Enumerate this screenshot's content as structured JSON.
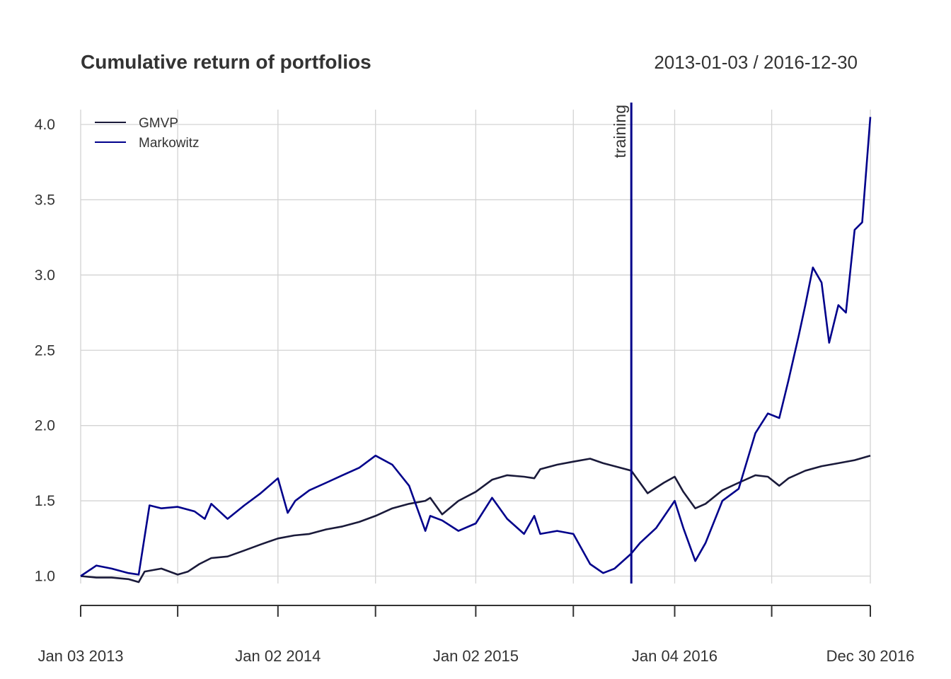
{
  "chart_data": {
    "type": "line",
    "title": "Cumulative return of portfolios",
    "date_range": "2013-01-03 / 2016-12-30",
    "x_start": "2013-01-03",
    "x_end": "2016-12-30",
    "ylim": [
      0.93,
      4.15
    ],
    "y_ticks": [
      1.0,
      1.5,
      2.0,
      2.5,
      3.0,
      3.5,
      4.0
    ],
    "y_tick_labels": [
      "1.0",
      "1.5",
      "2.0",
      "2.5",
      "3.0",
      "3.5",
      "4.0"
    ],
    "x_tick_labels": [
      {
        "date": "2013-01-03",
        "label": "Jan 03 2013"
      },
      {
        "date": "2014-01-02",
        "label": "Jan 02 2014"
      },
      {
        "date": "2015-01-02",
        "label": "Jan 02 2015"
      },
      {
        "date": "2016-01-04",
        "label": "Jan 04 2016"
      },
      {
        "date": "2016-12-30",
        "label": "Dec 30 2016"
      }
    ],
    "x_grid_dates": [
      "2013-01-03",
      "2013-07-01",
      "2014-01-02",
      "2014-07-01",
      "2015-01-02",
      "2015-07-01",
      "2016-01-04",
      "2016-07-01",
      "2016-12-30"
    ],
    "grid": true,
    "legend_position": "top-left",
    "vline": {
      "date": "2015-10-16",
      "label": "training",
      "color": "#00008b"
    },
    "series": [
      {
        "name": "GMVP",
        "color": "#1a1a3a",
        "x": [
          "2013-01-03",
          "2013-02-01",
          "2013-03-01",
          "2013-04-01",
          "2013-04-20",
          "2013-05-01",
          "2013-06-01",
          "2013-07-01",
          "2013-07-20",
          "2013-08-10",
          "2013-09-01",
          "2013-10-01",
          "2013-11-01",
          "2013-12-01",
          "2014-01-02",
          "2014-02-01",
          "2014-03-01",
          "2014-04-01",
          "2014-05-01",
          "2014-06-01",
          "2014-07-01",
          "2014-08-01",
          "2014-09-01",
          "2014-10-01",
          "2014-10-10",
          "2014-11-01",
          "2014-12-01",
          "2015-01-02",
          "2015-02-01",
          "2015-03-01",
          "2015-04-01",
          "2015-04-20",
          "2015-05-01",
          "2015-06-01",
          "2015-07-01",
          "2015-08-01",
          "2015-08-25",
          "2015-09-15",
          "2015-10-16",
          "2015-11-15",
          "2015-12-15",
          "2016-01-04",
          "2016-01-20",
          "2016-02-11",
          "2016-03-01",
          "2016-04-01",
          "2016-05-01",
          "2016-06-01",
          "2016-06-24",
          "2016-07-15",
          "2016-08-01",
          "2016-09-01",
          "2016-10-01",
          "2016-11-01",
          "2016-12-01",
          "2016-12-30"
        ],
        "y": [
          1.0,
          0.99,
          0.99,
          0.98,
          0.96,
          1.03,
          1.05,
          1.01,
          1.03,
          1.08,
          1.12,
          1.13,
          1.17,
          1.21,
          1.25,
          1.27,
          1.28,
          1.31,
          1.33,
          1.36,
          1.4,
          1.45,
          1.48,
          1.5,
          1.52,
          1.41,
          1.5,
          1.56,
          1.64,
          1.67,
          1.66,
          1.65,
          1.71,
          1.74,
          1.76,
          1.78,
          1.75,
          1.73,
          1.7,
          1.55,
          1.62,
          1.66,
          1.56,
          1.45,
          1.48,
          1.57,
          1.62,
          1.67,
          1.66,
          1.6,
          1.65,
          1.7,
          1.73,
          1.75,
          1.77,
          1.8
        ]
      },
      {
        "name": "Markowitz",
        "color": "#00008b",
        "x": [
          "2013-01-03",
          "2013-02-01",
          "2013-03-01",
          "2013-04-01",
          "2013-04-20",
          "2013-05-10",
          "2013-06-01",
          "2013-07-01",
          "2013-08-01",
          "2013-08-20",
          "2013-09-01",
          "2013-10-01",
          "2013-11-01",
          "2013-12-01",
          "2014-01-02",
          "2014-01-20",
          "2014-02-03",
          "2014-03-01",
          "2014-04-01",
          "2014-05-01",
          "2014-06-01",
          "2014-07-01",
          "2014-08-01",
          "2014-09-01",
          "2014-10-01",
          "2014-10-10",
          "2014-11-01",
          "2014-12-01",
          "2015-01-02",
          "2015-02-01",
          "2015-03-01",
          "2015-04-01",
          "2015-04-20",
          "2015-05-01",
          "2015-06-01",
          "2015-07-01",
          "2015-08-01",
          "2015-08-25",
          "2015-09-15",
          "2015-10-16",
          "2015-11-01",
          "2015-12-01",
          "2016-01-04",
          "2016-01-20",
          "2016-02-11",
          "2016-03-01",
          "2016-04-01",
          "2016-05-01",
          "2016-06-01",
          "2016-06-24",
          "2016-07-15",
          "2016-08-01",
          "2016-08-20",
          "2016-09-01",
          "2016-09-15",
          "2016-10-01",
          "2016-10-15",
          "2016-11-01",
          "2016-11-15",
          "2016-12-01",
          "2016-12-15",
          "2016-12-30"
        ],
        "y": [
          1.0,
          1.07,
          1.05,
          1.02,
          1.01,
          1.47,
          1.45,
          1.46,
          1.43,
          1.38,
          1.48,
          1.38,
          1.47,
          1.55,
          1.65,
          1.42,
          1.5,
          1.57,
          1.62,
          1.67,
          1.72,
          1.8,
          1.74,
          1.6,
          1.3,
          1.4,
          1.37,
          1.3,
          1.35,
          1.52,
          1.38,
          1.28,
          1.4,
          1.28,
          1.3,
          1.28,
          1.08,
          1.02,
          1.05,
          1.15,
          1.22,
          1.32,
          1.5,
          1.32,
          1.1,
          1.22,
          1.5,
          1.58,
          1.95,
          2.08,
          2.05,
          2.3,
          2.6,
          2.8,
          3.05,
          2.95,
          2.55,
          2.8,
          2.75,
          3.3,
          3.35,
          4.05
        ]
      }
    ]
  }
}
